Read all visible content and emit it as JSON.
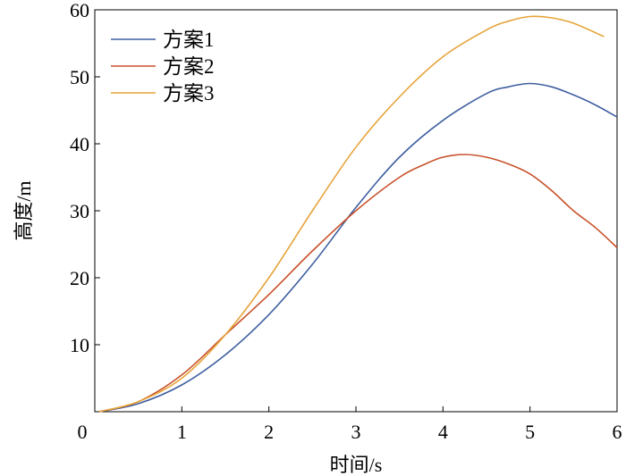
{
  "chart_data": {
    "type": "line",
    "title": "",
    "xlabel": "时间/s",
    "ylabel": "高度/m",
    "xlim": [
      0,
      6
    ],
    "ylim": [
      0,
      60
    ],
    "xticks": [
      0,
      1,
      2,
      3,
      4,
      5,
      6
    ],
    "yticks": [
      10,
      20,
      30,
      40,
      50,
      60
    ],
    "grid": false,
    "legend_position": "top-left",
    "series": [
      {
        "name": "方案1",
        "color": "#3f5fa0",
        "x": [
          0.05,
          0.5,
          1,
          1.5,
          2,
          2.5,
          3,
          3.5,
          4,
          4.5,
          4.75,
          5,
          5.25,
          5.5,
          5.75,
          6
        ],
        "y": [
          0,
          1.2,
          4,
          8.5,
          14.5,
          22,
          30.5,
          38,
          43.5,
          47.5,
          48.5,
          49,
          48.5,
          47.3,
          45.8,
          44
        ]
      },
      {
        "name": "方案2",
        "color": "#c8512a",
        "x": [
          0.05,
          0.5,
          1,
          1.5,
          2,
          2.5,
          3,
          3.5,
          3.8,
          4,
          4.25,
          4.5,
          4.75,
          5,
          5.25,
          5.5,
          5.75,
          6
        ],
        "y": [
          0,
          1.5,
          5.5,
          11.5,
          17.5,
          24,
          30,
          35,
          37,
          38,
          38.4,
          38,
          37,
          35.5,
          33,
          30,
          27.5,
          24.5
        ]
      },
      {
        "name": "方案3",
        "color": "#e6a43a",
        "x": [
          0.05,
          0.5,
          1,
          1.5,
          2,
          2.5,
          3,
          3.5,
          4,
          4.5,
          4.75,
          5,
          5.25,
          5.5,
          5.85
        ],
        "y": [
          0,
          1.5,
          5,
          11.5,
          20,
          30,
          39.5,
          47,
          53,
          57,
          58.3,
          59,
          58.8,
          58,
          56
        ]
      }
    ]
  }
}
